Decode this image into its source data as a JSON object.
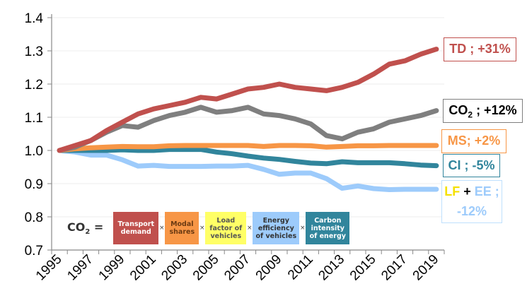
{
  "chart_data": {
    "type": "line",
    "title": "",
    "xlabel": "",
    "ylabel": "",
    "ylim": [
      0.7,
      1.4
    ],
    "yticks": [
      "0.7",
      "0.8",
      "0.9",
      "1.0",
      "1.1",
      "1.2",
      "1.3",
      "1.4"
    ],
    "grid": true,
    "x": [
      1995,
      1996,
      1997,
      1998,
      1999,
      2000,
      2001,
      2002,
      2003,
      2004,
      2005,
      2006,
      2007,
      2008,
      2009,
      2010,
      2011,
      2012,
      2013,
      2014,
      2015,
      2016,
      2017,
      2018,
      2019
    ],
    "xtick_labels": [
      "1995",
      "1997",
      "1999",
      "2001",
      "2003",
      "2005",
      "2007",
      "2009",
      "2011",
      "2013",
      "2015",
      "2017",
      "2019"
    ],
    "series": [
      {
        "name": "TD",
        "label": "TD ; +31%",
        "color": "#c0504d",
        "values": [
          1.0,
          1.015,
          1.03,
          1.06,
          1.085,
          1.11,
          1.125,
          1.135,
          1.145,
          1.16,
          1.155,
          1.17,
          1.185,
          1.19,
          1.2,
          1.19,
          1.185,
          1.18,
          1.19,
          1.205,
          1.23,
          1.26,
          1.27,
          1.29,
          1.305
        ]
      },
      {
        "name": "CO2",
        "label_main": "CO",
        "label_sub": "2",
        "label_rest": " ; +12%",
        "color": "#7f7f7f",
        "values": [
          1.0,
          1.01,
          1.03,
          1.055,
          1.075,
          1.07,
          1.09,
          1.105,
          1.115,
          1.13,
          1.115,
          1.12,
          1.13,
          1.11,
          1.105,
          1.095,
          1.08,
          1.045,
          1.035,
          1.055,
          1.065,
          1.085,
          1.095,
          1.105,
          1.12
        ]
      },
      {
        "name": "MS",
        "label": "MS; +2%",
        "color": "#f79646",
        "values": [
          1.0,
          1.005,
          1.008,
          1.01,
          1.012,
          1.011,
          1.011,
          1.014,
          1.015,
          1.015,
          1.015,
          1.015,
          1.015,
          1.012,
          1.015,
          1.015,
          1.014,
          1.01,
          1.012,
          1.014,
          1.014,
          1.015,
          1.015,
          1.015,
          1.015
        ]
      },
      {
        "name": "CI",
        "label": "CI ; -5%",
        "color": "#31859c",
        "values": [
          1.0,
          1.0,
          1.0,
          1.0,
          1.002,
          1.0,
          1.0,
          1.003,
          1.003,
          1.003,
          0.995,
          0.99,
          0.983,
          0.977,
          0.973,
          0.967,
          0.962,
          0.96,
          0.966,
          0.963,
          0.963,
          0.963,
          0.96,
          0.956,
          0.954
        ]
      },
      {
        "name": "LF + EE",
        "label_lf": "LF",
        "label_plus": " + ",
        "label_ee": "EE ;",
        "label_pct": "-12%",
        "color": "#9dcbfb",
        "lf_color": "#f5e000",
        "values": [
          1.0,
          0.995,
          0.986,
          0.986,
          0.972,
          0.953,
          0.955,
          0.952,
          0.952,
          0.952,
          0.953,
          0.953,
          0.955,
          0.943,
          0.928,
          0.932,
          0.932,
          0.915,
          0.886,
          0.893,
          0.885,
          0.882,
          0.883,
          0.883,
          0.883
        ]
      }
    ],
    "annotation": {
      "lhs_main": "CO",
      "lhs_sub": "2",
      "lhs_eq": " =",
      "times": "×",
      "factors": [
        {
          "text": "Transport demand",
          "color": "#c0504d"
        },
        {
          "text": "Modal shares",
          "color": "#f79646"
        },
        {
          "text": "Load factor of vehicles",
          "color": "#ffff66"
        },
        {
          "text": "Energy efficiency of vehicles",
          "color": "#9dcbfb"
        },
        {
          "text": "Carbon intensity of energy",
          "color": "#31859c"
        }
      ]
    }
  }
}
